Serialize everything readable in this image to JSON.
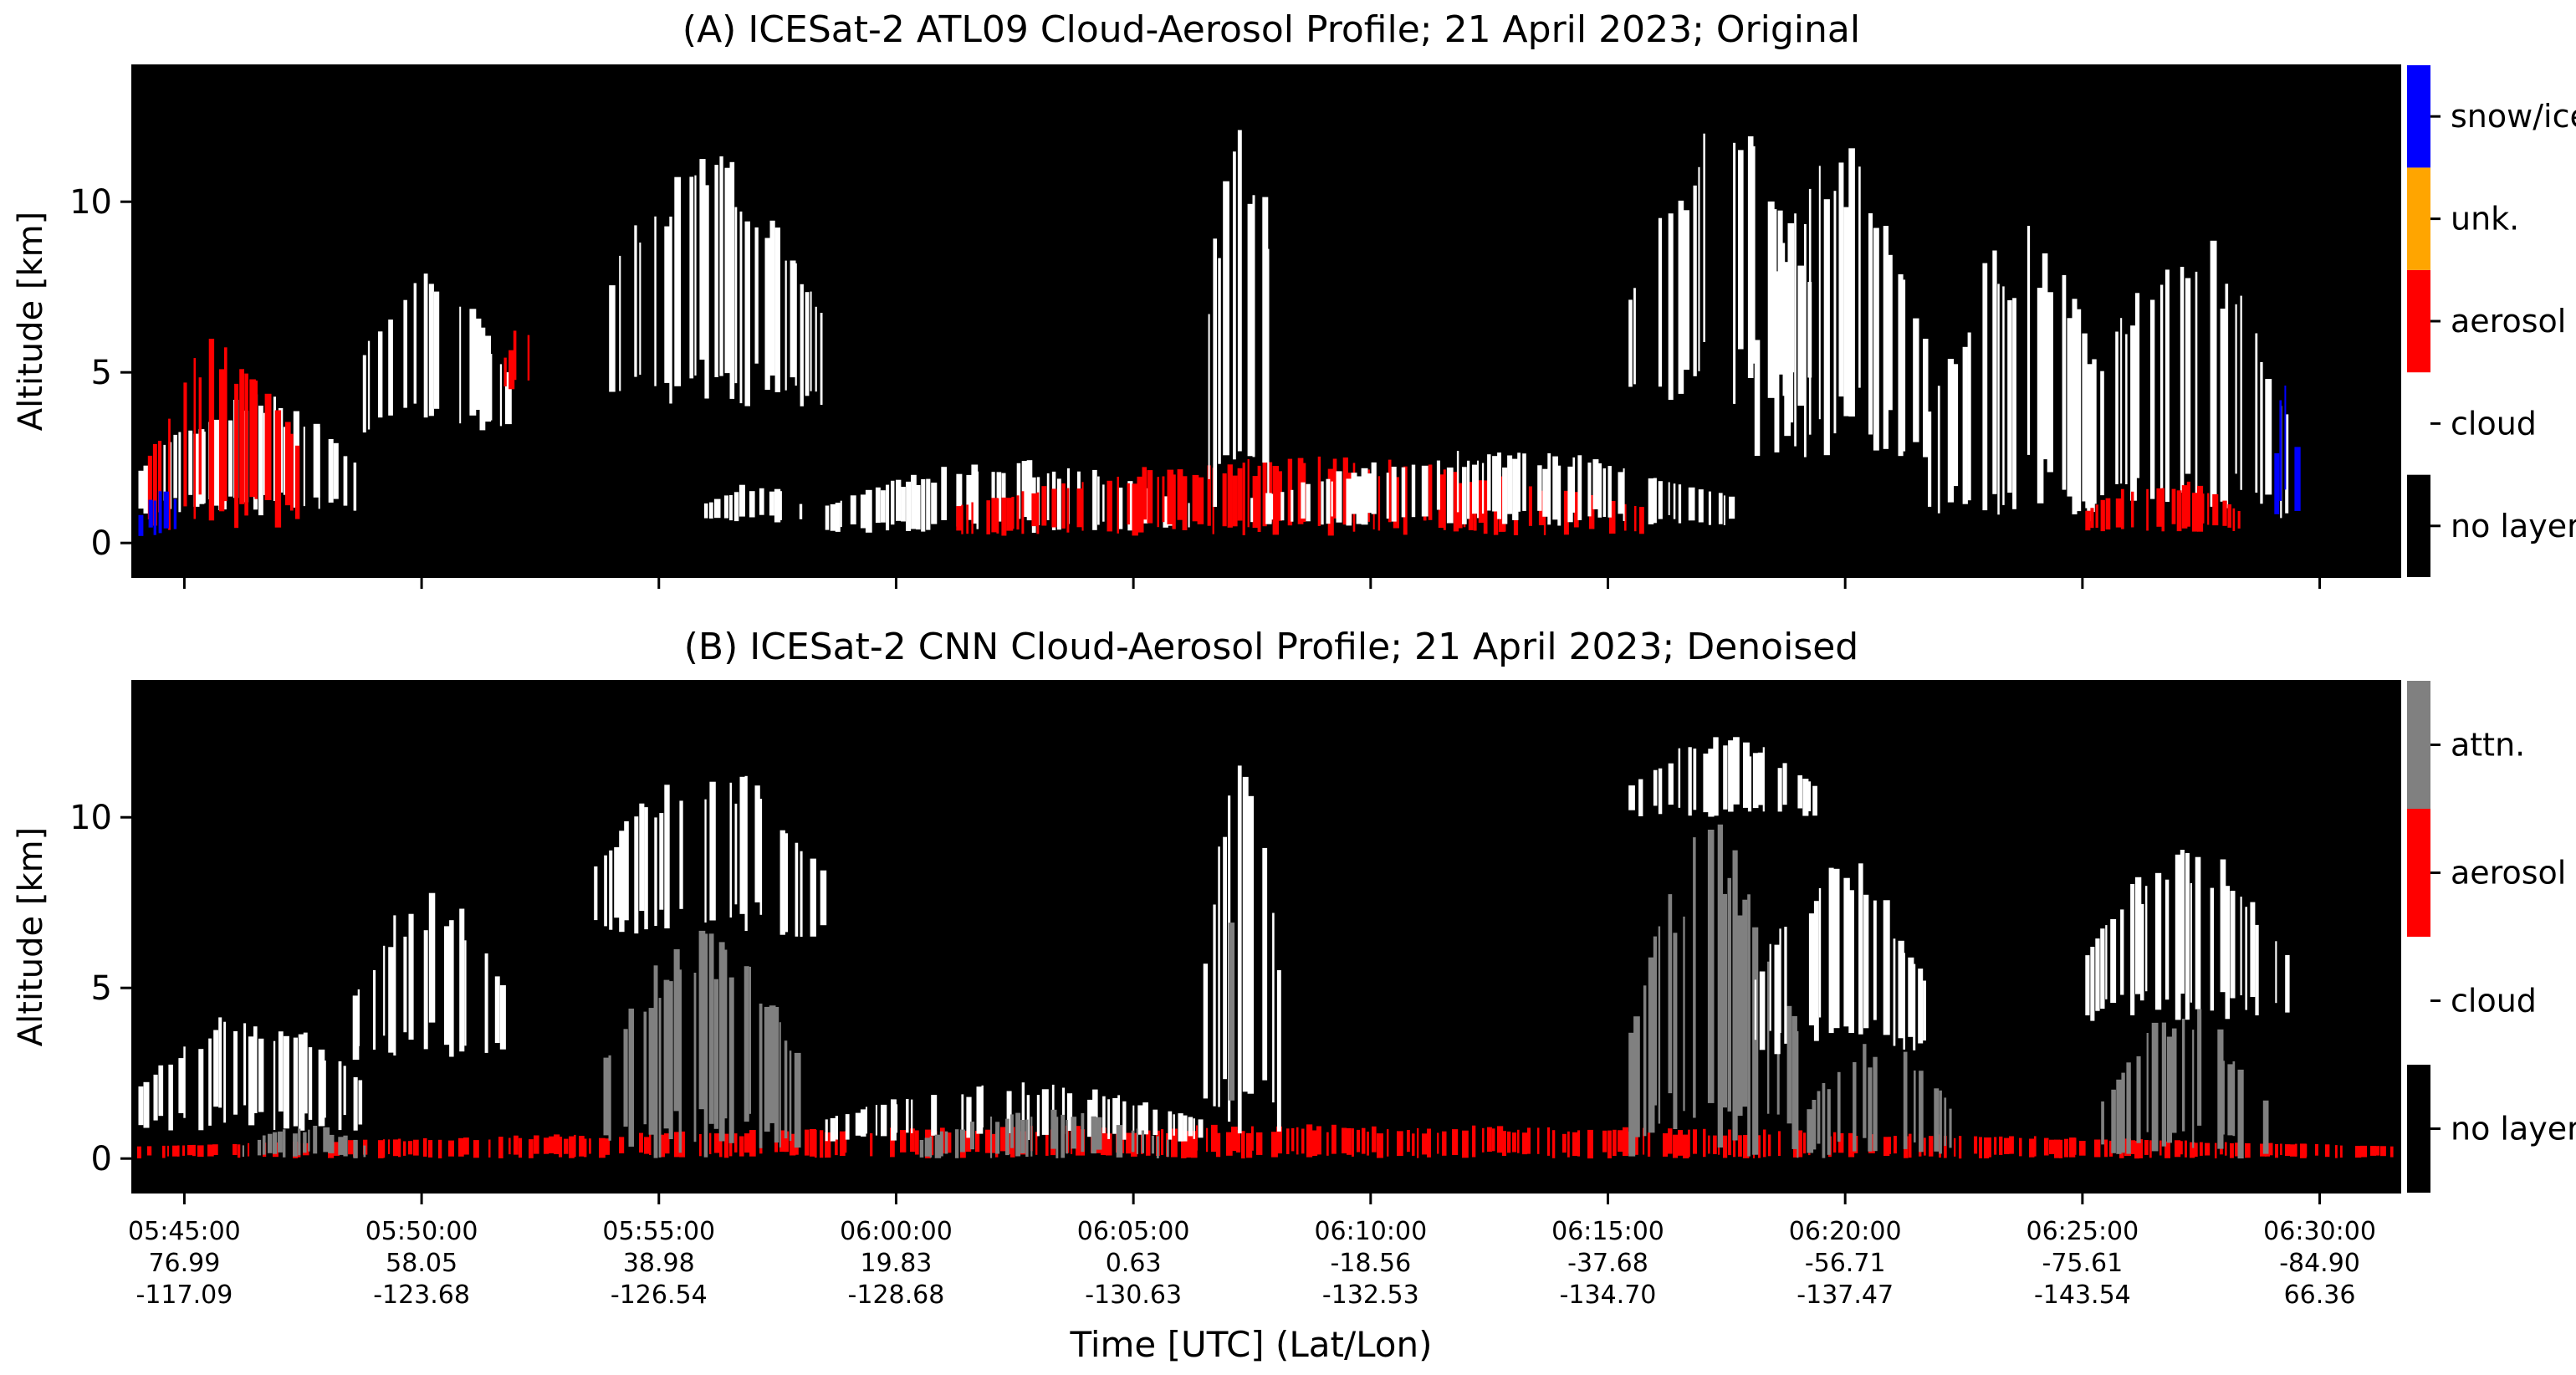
{
  "chart_data": [
    {
      "type": "heatmap",
      "title": "(A) ICESat-2 ATL09 Cloud-Aerosol Profile; 21 April 2023; Original",
      "ylabel": "Altitude [km]",
      "xlabel": "",
      "ylim": [
        -1,
        14
      ],
      "yticks": [
        "0",
        "5",
        "10"
      ],
      "legend_position": "right colorbar",
      "categories": [
        {
          "label": "no layer",
          "color": "#000000"
        },
        {
          "label": "cloud",
          "color": "#ffffff"
        },
        {
          "label": "aerosol",
          "color": "#ff0000"
        },
        {
          "label": "unk.",
          "color": "#ffa500"
        },
        {
          "label": "snow/ice",
          "color": "#0000ff"
        }
      ],
      "layers": [
        {
          "class": "cloud",
          "t0": 0.2,
          "t1": 7.5,
          "base": 0.8,
          "top": 4.4
        },
        {
          "class": "aerosol",
          "t0": 0.5,
          "t1": 5.5,
          "base": 0.3,
          "top": 6.2
        },
        {
          "class": "snow/ice",
          "t0": 0.2,
          "t1": 1.8,
          "base": 0.2,
          "top": 1.6
        },
        {
          "class": "cloud",
          "t0": 7.0,
          "t1": 12.0,
          "base": 3.2,
          "top": 8.0
        },
        {
          "class": "aerosol",
          "t0": 11.8,
          "t1": 13.0,
          "base": 4.5,
          "top": 6.5
        },
        {
          "class": "cloud",
          "t0": 14.5,
          "t1": 22.0,
          "base": 4.0,
          "top": 11.5
        },
        {
          "class": "cloud",
          "t0": 18.0,
          "t1": 21.5,
          "base": 0.6,
          "top": 1.8
        },
        {
          "class": "cloud",
          "t0": 22.0,
          "t1": 34.0,
          "base": 0.3,
          "top": 2.5
        },
        {
          "class": "aerosol",
          "t0": 26.0,
          "t1": 48.0,
          "base": 0.2,
          "top": 2.6
        },
        {
          "class": "cloud",
          "t0": 34.0,
          "t1": 36.5,
          "base": 0.5,
          "top": 13.4
        },
        {
          "class": "cloud",
          "t0": 35.5,
          "t1": 51.0,
          "base": 0.5,
          "top": 2.8
        },
        {
          "class": "cloud",
          "t0": 47.5,
          "t1": 53.5,
          "base": 4.0,
          "top": 12.5
        },
        {
          "class": "cloud",
          "t0": 51.5,
          "t1": 57.0,
          "base": 2.5,
          "top": 11.8
        },
        {
          "class": "cloud",
          "t0": 57.0,
          "t1": 63.0,
          "base": 0.5,
          "top": 9.5
        },
        {
          "class": "cloud",
          "t0": 62.0,
          "t1": 68.5,
          "base": 0.5,
          "top": 9.3
        },
        {
          "class": "snow/ice",
          "t0": 68.0,
          "t1": 68.8,
          "base": 0.6,
          "top": 4.8
        },
        {
          "class": "aerosol",
          "t0": 62.0,
          "t1": 67.0,
          "base": 0.3,
          "top": 2.0
        }
      ]
    },
    {
      "type": "heatmap",
      "title": "(B) ICESat-2 CNN Cloud-Aerosol Profile; 21 April 2023; Denoised",
      "ylabel": "Altitude [km]",
      "xlabel": "Time [UTC] (Lat/Lon)",
      "ylim": [
        -1,
        14
      ],
      "yticks": [
        "0",
        "5",
        "10"
      ],
      "legend_position": "right colorbar",
      "categories": [
        {
          "label": "no layer",
          "color": "#000000"
        },
        {
          "label": "cloud",
          "color": "#ffffff"
        },
        {
          "label": "aerosol",
          "color": "#ff0000"
        },
        {
          "label": "attn.",
          "color": "#808080"
        }
      ],
      "layers": [
        {
          "class": "aerosol",
          "t0": 0.0,
          "t1": 72.0,
          "base": 0.0,
          "top": 1.0
        },
        {
          "class": "cloud",
          "t0": 0.2,
          "t1": 7.5,
          "base": 0.8,
          "top": 4.4
        },
        {
          "class": "attn.",
          "t0": 3.5,
          "t1": 7.5,
          "base": 0.0,
          "top": 1.0
        },
        {
          "class": "cloud",
          "t0": 7.0,
          "t1": 12.0,
          "base": 2.8,
          "top": 8.0
        },
        {
          "class": "cloud",
          "t0": 14.5,
          "t1": 22.0,
          "base": 6.5,
          "top": 11.8
        },
        {
          "class": "attn.",
          "t0": 14.8,
          "t1": 21.5,
          "base": 0.0,
          "top": 7.0
        },
        {
          "class": "cloud",
          "t0": 22.0,
          "t1": 34.0,
          "base": 0.5,
          "top": 2.3
        },
        {
          "class": "attn.",
          "t0": 25.0,
          "t1": 33.0,
          "base": 0.0,
          "top": 1.5
        },
        {
          "class": "cloud",
          "t0": 34.0,
          "t1": 36.5,
          "base": 0.5,
          "top": 13.4
        },
        {
          "class": "attn.",
          "t0": 34.8,
          "t1": 35.3,
          "base": 0.0,
          "top": 13.2
        },
        {
          "class": "cloud",
          "t0": 47.5,
          "t1": 53.5,
          "base": 10.0,
          "top": 12.5
        },
        {
          "class": "attn.",
          "t0": 47.5,
          "t1": 53.0,
          "base": 0.0,
          "top": 10.0
        },
        {
          "class": "cloud",
          "t0": 51.5,
          "t1": 57.0,
          "base": 3.0,
          "top": 9.0
        },
        {
          "class": "attn.",
          "t0": 53.0,
          "t1": 58.0,
          "base": 0.0,
          "top": 3.5
        },
        {
          "class": "cloud",
          "t0": 62.0,
          "t1": 68.5,
          "base": 4.0,
          "top": 9.3
        },
        {
          "class": "attn.",
          "t0": 62.5,
          "t1": 67.8,
          "base": 0.0,
          "top": 4.5
        }
      ]
    }
  ],
  "x_axis": {
    "range_minutes": [
      -1.1,
      46.7
    ],
    "ticks": [
      {
        "t": 0,
        "time": "05:45:00",
        "lat": "76.99",
        "lon": "-117.09"
      },
      {
        "t": 5,
        "time": "05:50:00",
        "lat": "58.05",
        "lon": "-123.68"
      },
      {
        "t": 10,
        "time": "05:55:00",
        "lat": "38.98",
        "lon": "-126.54"
      },
      {
        "t": 15,
        "time": "06:00:00",
        "lat": "19.83",
        "lon": "-128.68"
      },
      {
        "t": 20,
        "time": "06:05:00",
        "lat": "0.63",
        "lon": "-130.63"
      },
      {
        "t": 25,
        "time": "06:10:00",
        "lat": "-18.56",
        "lon": "-132.53"
      },
      {
        "t": 30,
        "time": "06:15:00",
        "lat": "-37.68",
        "lon": "-134.70"
      },
      {
        "t": 35,
        "time": "06:20:00",
        "lat": "-56.71",
        "lon": "-137.47"
      },
      {
        "t": 40,
        "time": "06:25:00",
        "lat": "-75.61",
        "lon": "-143.54"
      },
      {
        "t": 45,
        "time": "06:30:00",
        "lat": "-84.90",
        "lon": "66.36"
      }
    ]
  }
}
